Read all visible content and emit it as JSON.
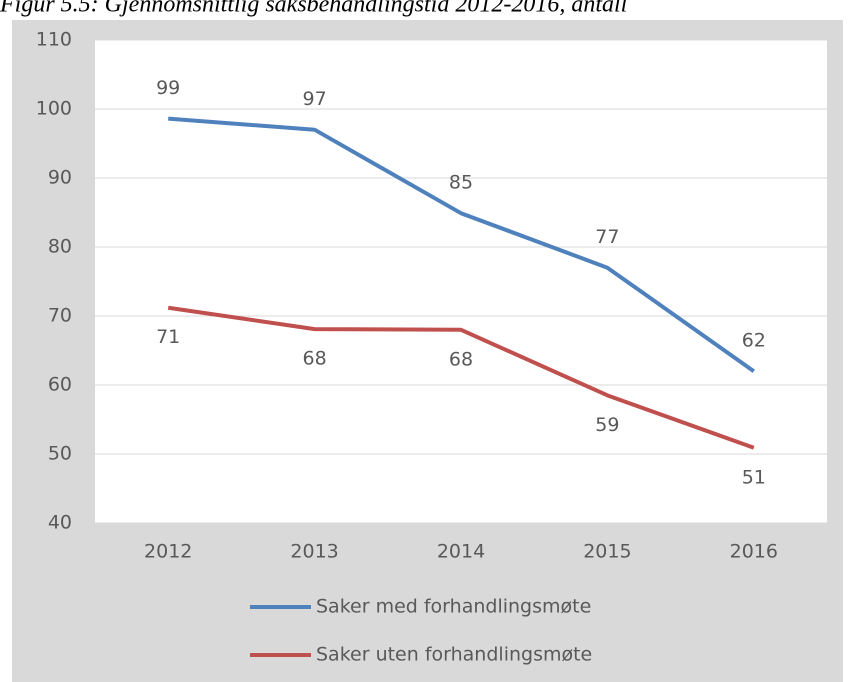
{
  "chart_data": {
    "type": "line",
    "title": "Figur 5.5: Gjennomsnittlig saksbehandlingstid 2012-2016, antall",
    "categories": [
      "2012",
      "2013",
      "2014",
      "2015",
      "2016"
    ],
    "series": [
      {
        "name": "Saker med forhandlingsmøte",
        "color": "#4f81bd",
        "values": [
          98.6,
          97.0,
          84.9,
          77.0,
          62.0
        ],
        "value_labels": [
          "99",
          "97",
          "85",
          "77",
          "62"
        ]
      },
      {
        "name": "Saker uten forhandlingsmøte",
        "color": "#c0504d",
        "values": [
          71.2,
          68.1,
          68.0,
          58.5,
          50.9
        ],
        "value_labels": [
          "71",
          "68",
          "68",
          "59",
          "51"
        ]
      }
    ],
    "ylim": [
      40,
      110
    ],
    "yticks": [
      40,
      50,
      60,
      70,
      80,
      90,
      100,
      110
    ],
    "grid": true,
    "legend": "bottom"
  }
}
